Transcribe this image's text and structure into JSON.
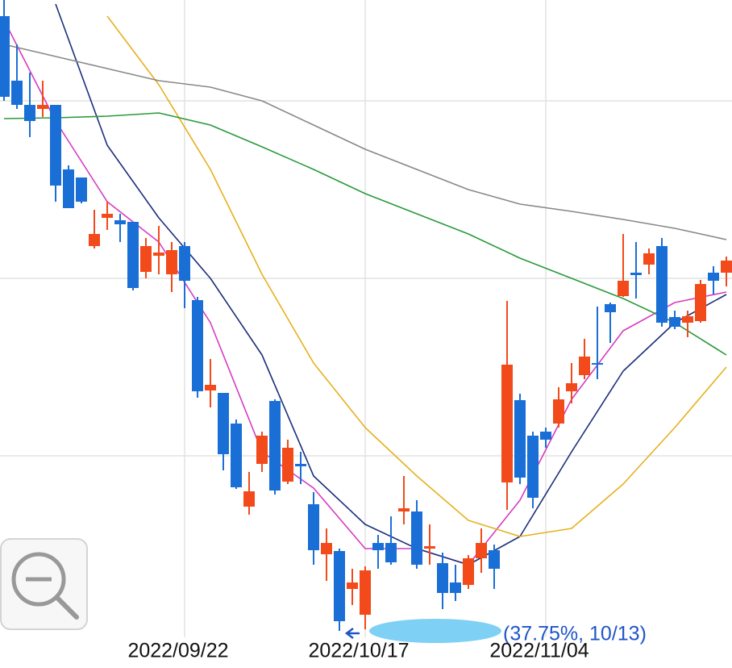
{
  "chart_data": {
    "type": "candlestick",
    "categories": [
      null,
      null,
      null,
      null,
      null,
      null,
      null,
      null,
      null,
      null,
      null,
      null,
      null,
      null,
      "2022/09/22",
      null,
      null,
      null,
      null,
      null,
      null,
      null,
      null,
      null,
      null,
      null,
      null,
      null,
      "2022/10/17",
      null,
      null,
      null,
      null,
      null,
      null,
      null,
      null,
      null,
      null,
      null,
      null,
      null,
      "2022/11/04",
      null,
      null,
      null,
      null,
      null,
      null,
      null,
      null,
      null,
      null,
      null,
      null,
      null,
      null
    ],
    "open": [
      808,
      728,
      698,
      693,
      698,
      618,
      608,
      523,
      558,
      555,
      553,
      491,
      511,
      488,
      523,
      456,
      344,
      341,
      303,
      200,
      253,
      331,
      231,
      253,
      203,
      141,
      145,
      98,
      66,
      155,
      155,
      194,
      194,
      148,
      130,
      106,
      103,
      136,
      146,
      230,
      332,
      288,
      293,
      303,
      343,
      363,
      378,
      451,
      461,
      490,
      500,
      523,
      435,
      428,
      430,
      490,
      490
    ],
    "high": [
      828,
      773,
      738,
      728,
      698,
      623,
      608,
      568,
      578,
      563,
      553,
      533,
      548,
      528,
      528,
      460,
      383,
      341,
      308,
      243,
      293,
      333,
      283,
      268,
      218,
      173,
      148,
      123,
      126,
      165,
      188,
      238,
      208,
      178,
      143,
      128,
      140,
      173,
      153,
      455,
      340,
      293,
      298,
      348,
      378,
      408,
      448,
      453,
      538,
      528,
      520,
      533,
      443,
      443,
      481,
      498,
      510
    ],
    "low": [
      703,
      693,
      658,
      683,
      578,
      570,
      576,
      520,
      543,
      528,
      468,
      483,
      488,
      466,
      446,
      335,
      323,
      245,
      222,
      190,
      243,
      215,
      228,
      228,
      128,
      108,
      46,
      78,
      48,
      123,
      128,
      178,
      123,
      128,
      73,
      83,
      98,
      118,
      98,
      196,
      228,
      198,
      273,
      298,
      328,
      358,
      358,
      403,
      460,
      458,
      488,
      423,
      420,
      410,
      428,
      463,
      473
    ],
    "close": [
      708,
      698,
      678,
      698,
      598,
      570,
      578,
      538,
      563,
      550,
      471,
      523,
      515,
      518,
      480,
      343,
      351,
      265,
      224,
      219,
      288,
      220,
      273,
      250,
      146,
      155,
      58,
      106,
      121,
      146,
      131,
      198,
      128,
      151,
      93,
      93,
      136,
      155,
      123,
      376,
      236,
      211,
      283,
      333,
      353,
      386,
      376,
      441,
      480,
      487,
      514,
      428,
      423,
      436,
      476,
      480,
      505
    ],
    "up_color": "#f24a1a",
    "down_color": "#1a6fd6",
    "lines": [
      {
        "color": "#d63bc4",
        "x": [
          0,
          4,
          8,
          12,
          16,
          20,
          24,
          28,
          32,
          36,
          40,
          44,
          48,
          52,
          56
        ],
        "values": [
          803,
          678,
          578,
          528,
          428,
          268,
          223,
          148,
          148,
          128,
          208,
          333,
          418,
          453,
          466
        ]
      },
      {
        "color": "#1b2f7a",
        "x": [
          0,
          4,
          8,
          12,
          16,
          20,
          24,
          28,
          32,
          36,
          40,
          44,
          48,
          52,
          56
        ],
        "values": [
          null,
          823,
          648,
          558,
          483,
          388,
          238,
          178,
          148,
          128,
          163,
          268,
          368,
          428,
          463
        ]
      },
      {
        "color": "#e6b01e",
        "x": [
          0,
          4,
          8,
          12,
          16,
          20,
          24,
          28,
          32,
          36,
          40,
          44,
          48,
          52,
          56
        ],
        "values": [
          null,
          null,
          808,
          723,
          618,
          488,
          378,
          298,
          238,
          183,
          163,
          173,
          228,
          298,
          373
        ]
      },
      {
        "color": "#2a9a3a",
        "x": [
          0,
          4,
          8,
          12,
          16,
          20,
          24,
          28,
          32,
          36,
          40,
          44,
          48,
          52,
          56
        ],
        "values": [
          681,
          682,
          684,
          688,
          673,
          646,
          618,
          588,
          563,
          538,
          508,
          483,
          458,
          428,
          388
        ]
      },
      {
        "color": "#888888",
        "x": [
          0,
          4,
          8,
          12,
          16,
          20,
          24,
          28,
          32,
          36,
          40,
          44,
          48,
          52,
          56
        ],
        "values": [
          773,
          758,
          743,
          728,
          720,
          703,
          673,
          643,
          618,
          593,
          575,
          566,
          556,
          545,
          531
        ]
      }
    ],
    "ylim": [
      0,
      828
    ],
    "yticks": [
      263,
      483,
      703
    ],
    "grid": true,
    "annotation": "(37.75%, 10/13)"
  }
}
